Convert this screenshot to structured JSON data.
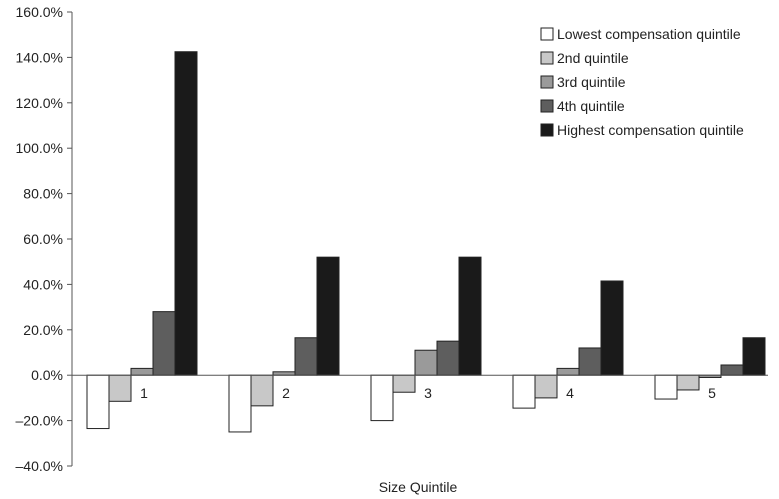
{
  "chart_data": {
    "type": "bar",
    "xlabel": "Size Quintile",
    "ylabel": "",
    "categories": [
      "1",
      "2",
      "3",
      "4",
      "5"
    ],
    "ylim": [
      -40,
      160
    ],
    "yticks": [
      "160.0%",
      "140.0%",
      "120.0%",
      "100.0%",
      "80.0%",
      "60.0%",
      "40.0%",
      "20.0%",
      "0.0%",
      "–20.0%",
      "–40.0%"
    ],
    "ytick_values": [
      160,
      140,
      120,
      100,
      80,
      60,
      40,
      20,
      0,
      -20,
      -40
    ],
    "legend_position": "top-right",
    "series": [
      {
        "name": "Lowest compensation quintile",
        "color": "#ffffff",
        "values": [
          -23.5,
          -25,
          -20,
          -14.5,
          -10.5
        ]
      },
      {
        "name": "2nd quintile",
        "color": "#c8c8c8",
        "values": [
          -11.5,
          -13.5,
          -7.5,
          -10,
          -6.5
        ]
      },
      {
        "name": "3rd quintile",
        "color": "#9a9a9a",
        "values": [
          3,
          1.5,
          11,
          3,
          -1
        ]
      },
      {
        "name": "4th quintile",
        "color": "#5e5e5e",
        "values": [
          28,
          16.5,
          15,
          12,
          4.5
        ]
      },
      {
        "name": "Highest compensation quintile",
        "color": "#1a1a1a",
        "values": [
          142.5,
          52,
          52,
          41.5,
          16.5
        ]
      }
    ]
  }
}
